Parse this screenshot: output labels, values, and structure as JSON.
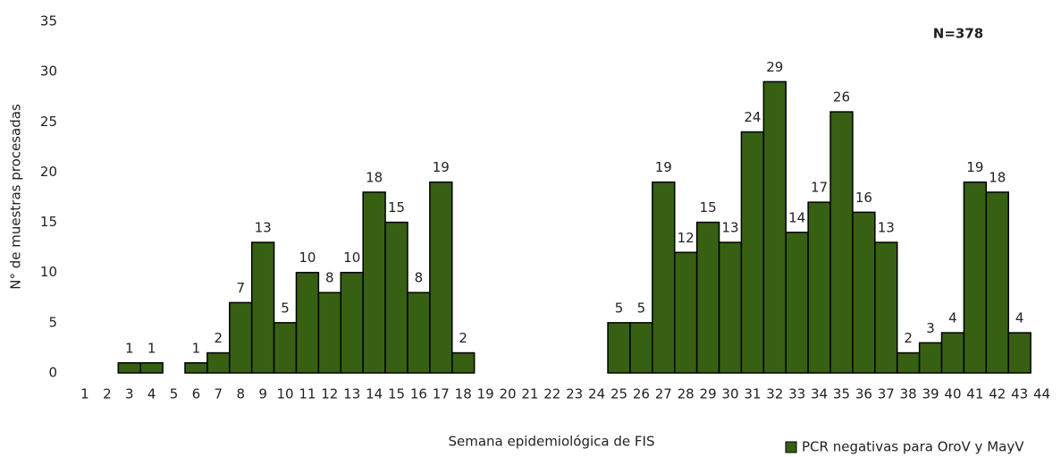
{
  "chart_data": {
    "type": "bar",
    "x_label": "Semana epidemiológica de FIS",
    "y_label": "N° de muestras procesadas",
    "annotation": "N=378",
    "categories": [
      "1",
      "2",
      "3",
      "4",
      "5",
      "6",
      "7",
      "8",
      "9",
      "10",
      "11",
      "12",
      "13",
      "14",
      "15",
      "16",
      "17",
      "18",
      "19",
      "20",
      "21",
      "22",
      "23",
      "24",
      "25",
      "26",
      "27",
      "28",
      "29",
      "30",
      "31",
      "32",
      "33",
      "34",
      "35",
      "36",
      "37",
      "38",
      "39",
      "40",
      "41",
      "42",
      "43",
      "44"
    ],
    "series": [
      {
        "name": "PCR negativas para OroV y MayV",
        "color": "#376013",
        "values": [
          0,
          0,
          1,
          1,
          0,
          1,
          2,
          7,
          13,
          5,
          10,
          8,
          10,
          18,
          15,
          8,
          19,
          2,
          0,
          0,
          0,
          0,
          0,
          0,
          5,
          5,
          19,
          12,
          15,
          13,
          24,
          29,
          14,
          17,
          26,
          16,
          13,
          2,
          3,
          4,
          19,
          18,
          4,
          0
        ]
      }
    ],
    "ylim": [
      0,
      35
    ],
    "yticks": [
      0,
      5,
      10,
      15,
      20,
      25,
      30,
      35
    ],
    "grid": false
  }
}
